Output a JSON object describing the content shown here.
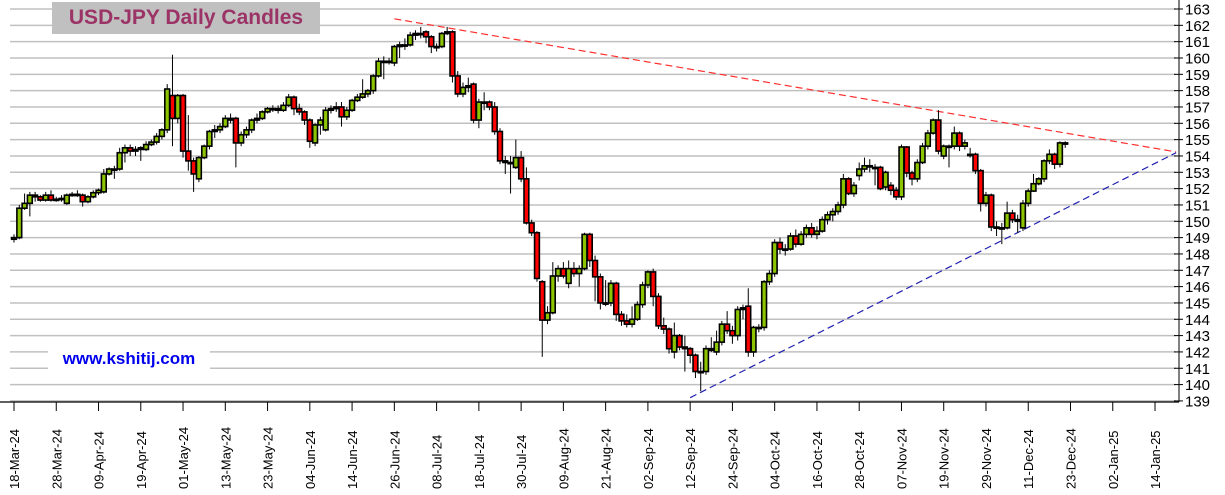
{
  "chart_data": {
    "type": "candlestick",
    "title": "USD-JPY Daily Candles",
    "watermark": "www.kshitij.com",
    "ylim": [
      139,
      163
    ],
    "y_ticks": [
      139,
      140,
      141,
      142,
      143,
      144,
      145,
      146,
      147,
      148,
      149,
      150,
      151,
      152,
      153,
      154,
      155,
      156,
      157,
      158,
      159,
      160,
      161,
      162,
      163
    ],
    "y_axis_side": "right",
    "x_tick_labels": [
      "18-Mar-24",
      "28-Mar-24",
      "09-Apr-24",
      "19-Apr-24",
      "01-May-24",
      "13-May-24",
      "23-May-24",
      "04-Jun-24",
      "14-Jun-24",
      "26-Jun-24",
      "08-Jul-24",
      "18-Jul-24",
      "30-Jul-24",
      "09-Aug-24",
      "21-Aug-24",
      "02-Sep-24",
      "12-Sep-24",
      "24-Sep-24",
      "04-Oct-24",
      "16-Oct-24",
      "28-Oct-24",
      "07-Nov-24",
      "19-Nov-24",
      "29-Nov-24",
      "11-Dec-24",
      "23-Dec-24",
      "02-Jan-25",
      "14-Jan-25"
    ],
    "grid": "horizontal",
    "colors": {
      "up": "#8cc400",
      "down": "#ff0000",
      "outline": "#000000",
      "grid": "#c0c0c0",
      "resistance": "#ff3030",
      "support": "#2020b0",
      "title_bg": "#c0c0c0",
      "title_text": "#9b3366",
      "watermark": "#0000ee"
    },
    "candle_fields": [
      "open",
      "high",
      "low",
      "close"
    ],
    "candles": [
      [
        148.9,
        149.2,
        148.7,
        149.0
      ],
      [
        149.0,
        151.0,
        148.9,
        150.8
      ],
      [
        150.8,
        151.7,
        150.7,
        151.1
      ],
      [
        151.1,
        151.8,
        150.3,
        151.6
      ],
      [
        151.6,
        151.8,
        151.2,
        151.5
      ],
      [
        151.5,
        151.6,
        151.2,
        151.3
      ],
      [
        151.3,
        151.8,
        151.2,
        151.6
      ],
      [
        151.6,
        151.9,
        151.2,
        151.3
      ],
      [
        151.3,
        151.5,
        151.2,
        151.35
      ],
      [
        151.35,
        151.6,
        151.2,
        151.4
      ],
      [
        151.1,
        151.7,
        151.0,
        151.6
      ],
      [
        151.6,
        151.8,
        151.5,
        151.65
      ],
      [
        151.65,
        151.9,
        151.5,
        151.6
      ],
      [
        151.6,
        151.7,
        150.9,
        151.2
      ],
      [
        151.2,
        151.6,
        151.1,
        151.5
      ],
      [
        151.5,
        151.9,
        151.4,
        151.75
      ],
      [
        151.75,
        152.0,
        151.6,
        151.9
      ],
      [
        151.8,
        153.2,
        151.7,
        152.9
      ],
      [
        152.9,
        153.3,
        152.8,
        153.2
      ],
      [
        153.2,
        153.4,
        152.6,
        153.2
      ],
      [
        153.2,
        154.5,
        153.1,
        154.2
      ],
      [
        154.2,
        154.7,
        153.6,
        154.5
      ],
      [
        154.5,
        154.7,
        154.0,
        154.3
      ],
      [
        154.3,
        154.6,
        154.0,
        154.4
      ],
      [
        154.4,
        154.6,
        153.7,
        154.5
      ],
      [
        154.4,
        154.9,
        154.3,
        154.7
      ],
      [
        154.7,
        155.0,
        154.6,
        154.85
      ],
      [
        154.85,
        155.4,
        154.7,
        155.2
      ],
      [
        155.2,
        155.7,
        155.0,
        155.6
      ],
      [
        155.6,
        158.4,
        155.4,
        158.1
      ],
      [
        157.7,
        160.2,
        154.6,
        156.3
      ],
      [
        156.3,
        157.8,
        156.0,
        157.7
      ],
      [
        157.7,
        157.8,
        153.9,
        154.3
      ],
      [
        154.3,
        156.5,
        153.1,
        153.7
      ],
      [
        153.7,
        153.9,
        151.8,
        152.9
      ],
      [
        152.6,
        154.0,
        152.4,
        153.9
      ],
      [
        153.9,
        154.7,
        153.8,
        154.6
      ],
      [
        154.6,
        155.6,
        154.4,
        155.5
      ],
      [
        155.5,
        155.9,
        155.1,
        155.6
      ],
      [
        155.6,
        156.0,
        155.4,
        155.8
      ],
      [
        155.8,
        156.5,
        155.7,
        156.3
      ],
      [
        156.2,
        156.6,
        156.0,
        156.3
      ],
      [
        156.3,
        156.4,
        153.3,
        154.8
      ],
      [
        154.8,
        155.5,
        154.6,
        155.3
      ],
      [
        155.3,
        155.8,
        155.1,
        155.6
      ],
      [
        155.6,
        156.3,
        155.4,
        156.2
      ],
      [
        156.2,
        156.6,
        156.0,
        156.3
      ],
      [
        156.3,
        156.8,
        156.2,
        156.7
      ],
      [
        156.7,
        157.0,
        156.6,
        156.9
      ],
      [
        156.9,
        157.1,
        156.7,
        156.9
      ],
      [
        156.9,
        157.1,
        156.6,
        156.8
      ],
      [
        156.8,
        157.3,
        156.7,
        157.1
      ],
      [
        157.1,
        157.8,
        157.0,
        157.6
      ],
      [
        157.6,
        157.7,
        156.5,
        156.9
      ],
      [
        156.9,
        157.2,
        156.5,
        156.7
      ],
      [
        156.7,
        156.8,
        155.9,
        156.2
      ],
      [
        156.2,
        156.3,
        154.5,
        154.9
      ],
      [
        154.8,
        156.0,
        154.6,
        155.9
      ],
      [
        155.9,
        156.4,
        155.3,
        156.2
      ],
      [
        155.6,
        157.0,
        155.5,
        156.8
      ],
      [
        156.8,
        157.1,
        156.6,
        156.9
      ],
      [
        156.9,
        157.3,
        156.7,
        157.0
      ],
      [
        157.0,
        157.3,
        155.8,
        156.4
      ],
      [
        156.4,
        157.0,
        156.2,
        156.8
      ],
      [
        156.8,
        157.5,
        156.7,
        157.4
      ],
      [
        157.4,
        157.8,
        157.3,
        157.6
      ],
      [
        157.6,
        158.7,
        157.5,
        157.8
      ],
      [
        157.8,
        158.1,
        157.6,
        158.0
      ],
      [
        158.0,
        159.0,
        157.8,
        158.9
      ],
      [
        158.9,
        160.0,
        158.8,
        159.8
      ],
      [
        159.8,
        160.1,
        158.7,
        159.8
      ],
      [
        159.8,
        160.0,
        159.6,
        159.8
      ],
      [
        159.7,
        160.8,
        159.5,
        160.7
      ],
      [
        160.7,
        161.0,
        160.0,
        160.8
      ],
      [
        160.8,
        161.2,
        160.5,
        160.8
      ],
      [
        160.8,
        161.6,
        160.7,
        161.4
      ],
      [
        161.4,
        161.7,
        161.1,
        161.5
      ],
      [
        161.5,
        161.9,
        161.2,
        161.5
      ],
      [
        161.6,
        161.7,
        160.9,
        161.3
      ],
      [
        161.3,
        161.4,
        160.3,
        160.7
      ],
      [
        160.7,
        160.9,
        160.4,
        160.7
      ],
      [
        160.7,
        161.6,
        160.6,
        161.5
      ],
      [
        161.5,
        161.9,
        161.4,
        161.6
      ],
      [
        161.6,
        161.7,
        158.5,
        158.9
      ],
      [
        158.9,
        159.2,
        157.6,
        157.8
      ],
      [
        157.8,
        158.5,
        157.6,
        158.2
      ],
      [
        158.2,
        158.8,
        157.9,
        158.3
      ],
      [
        158.4,
        158.5,
        156.0,
        156.2
      ],
      [
        156.2,
        157.5,
        155.7,
        157.3
      ],
      [
        157.3,
        157.9,
        156.8,
        157.3
      ],
      [
        157.3,
        157.4,
        156.8,
        157.0
      ],
      [
        157.0,
        157.3,
        155.3,
        155.5
      ],
      [
        155.5,
        155.7,
        153.5,
        153.7
      ],
      [
        153.7,
        154.0,
        152.9,
        153.6
      ],
      [
        153.6,
        154.0,
        151.7,
        153.6
      ],
      [
        153.3,
        155.0,
        153.2,
        153.9
      ],
      [
        153.9,
        154.3,
        152.4,
        152.6
      ],
      [
        152.6,
        153.3,
        149.8,
        149.9
      ],
      [
        149.9,
        150.1,
        149.1,
        149.3
      ],
      [
        149.3,
        149.4,
        146.3,
        146.5
      ],
      [
        146.3,
        146.4,
        141.7,
        143.95
      ],
      [
        143.95,
        144.8,
        143.7,
        144.4
      ],
      [
        144.4,
        147.5,
        144.3,
        146.65
      ],
      [
        146.65,
        147.3,
        146.3,
        147.1
      ],
      [
        147.1,
        147.5,
        146.5,
        146.65
      ],
      [
        146.2,
        147.6,
        145.9,
        147.1
      ],
      [
        147.1,
        147.5,
        146.6,
        146.8
      ],
      [
        146.8,
        147.3,
        146.0,
        147.1
      ],
      [
        147.1,
        149.3,
        147.0,
        149.2
      ],
      [
        149.2,
        149.3,
        147.2,
        147.6
      ],
      [
        147.6,
        147.9,
        145.1,
        146.6
      ],
      [
        146.6,
        146.8,
        144.6,
        145.0
      ],
      [
        145.0,
        146.4,
        144.8,
        145.0
      ],
      [
        145.0,
        146.4,
        144.8,
        146.2
      ],
      [
        146.2,
        146.3,
        143.9,
        144.3
      ],
      [
        144.3,
        144.5,
        143.6,
        143.9
      ],
      [
        143.9,
        144.3,
        143.5,
        143.7
      ],
      [
        143.7,
        144.8,
        143.5,
        144.0
      ],
      [
        144.0,
        145.1,
        143.9,
        144.9
      ],
      [
        144.9,
        146.3,
        144.7,
        146.1
      ],
      [
        146.1,
        147.0,
        145.9,
        146.9
      ],
      [
        146.9,
        147.1,
        144.8,
        145.4
      ],
      [
        145.4,
        145.6,
        143.4,
        143.6
      ],
      [
        143.6,
        144.1,
        143.1,
        143.4
      ],
      [
        143.4,
        143.5,
        141.9,
        142.2
      ],
      [
        142.0,
        143.8,
        141.6,
        143.0
      ],
      [
        143.0,
        143.1,
        142.1,
        142.3
      ],
      [
        142.3,
        143.0,
        140.8,
        142.2
      ],
      [
        142.2,
        142.3,
        141.3,
        141.8
      ],
      [
        141.8,
        141.9,
        140.4,
        140.8
      ],
      [
        140.8,
        141.4,
        139.6,
        140.8
      ],
      [
        140.8,
        142.4,
        140.6,
        142.2
      ],
      [
        142.2,
        142.9,
        142.0,
        142.1
      ],
      [
        142.0,
        143.3,
        141.8,
        142.6
      ],
      [
        142.6,
        143.9,
        142.4,
        143.7
      ],
      [
        143.7,
        144.5,
        143.1,
        143.3
      ],
      [
        143.3,
        143.6,
        142.5,
        143.0
      ],
      [
        143.0,
        144.8,
        142.7,
        144.6
      ],
      [
        144.6,
        144.9,
        144.0,
        144.7
      ],
      [
        144.8,
        145.9,
        141.7,
        142.0
      ],
      [
        142.0,
        143.6,
        141.7,
        143.5
      ],
      [
        143.5,
        143.7,
        143.2,
        143.5
      ],
      [
        143.5,
        146.4,
        143.3,
        146.3
      ],
      [
        146.3,
        147.0,
        146.1,
        146.8
      ],
      [
        146.8,
        148.9,
        146.6,
        148.7
      ],
      [
        148.7,
        149.0,
        148.0,
        148.3
      ],
      [
        148.3,
        148.6,
        147.9,
        148.3
      ],
      [
        148.3,
        149.3,
        148.2,
        149.1
      ],
      [
        149.1,
        149.5,
        148.4,
        148.6
      ],
      [
        148.6,
        149.4,
        148.5,
        149.2
      ],
      [
        149.2,
        149.8,
        149.0,
        149.6
      ],
      [
        149.6,
        149.9,
        149.0,
        149.2
      ],
      [
        149.2,
        149.7,
        148.9,
        149.4
      ],
      [
        149.4,
        150.3,
        149.3,
        150.1
      ],
      [
        150.1,
        150.6,
        149.8,
        150.4
      ],
      [
        150.4,
        150.8,
        150.0,
        150.6
      ],
      [
        150.6,
        151.2,
        150.4,
        151.0
      ],
      [
        151.0,
        152.9,
        150.8,
        152.6
      ],
      [
        152.6,
        152.7,
        151.6,
        151.7
      ],
      [
        151.7,
        152.4,
        151.5,
        152.2
      ],
      [
        152.8,
        153.6,
        152.5,
        153.2
      ],
      [
        153.2,
        153.9,
        153.0,
        153.4
      ],
      [
        153.4,
        153.8,
        153.0,
        153.4
      ],
      [
        153.3,
        153.5,
        152.2,
        153.3
      ],
      [
        153.3,
        153.4,
        151.9,
        152.0
      ],
      [
        152.1,
        153.1,
        151.9,
        153.0
      ],
      [
        152.2,
        152.4,
        151.6,
        151.9
      ],
      [
        151.9,
        152.1,
        151.3,
        151.5
      ],
      [
        151.5,
        154.7,
        151.3,
        154.55
      ],
      [
        154.55,
        154.6,
        152.7,
        152.96
      ],
      [
        152.96,
        153.1,
        152.2,
        152.6
      ],
      [
        152.6,
        153.8,
        152.4,
        153.6
      ],
      [
        153.6,
        154.8,
        153.5,
        154.6
      ],
      [
        154.6,
        155.6,
        154.4,
        155.4
      ],
      [
        155.4,
        156.3,
        155.3,
        156.2
      ],
      [
        156.2,
        156.8,
        154.1,
        154.3
      ],
      [
        154.0,
        154.7,
        153.8,
        154.6
      ],
      [
        154.6,
        154.7,
        153.3,
        154.6
      ],
      [
        154.6,
        155.8,
        154.4,
        155.4
      ],
      [
        155.4,
        155.5,
        154.3,
        154.6
      ],
      [
        154.6,
        155.0,
        154.4,
        154.8
      ],
      [
        154.1,
        154.5,
        153.9,
        154.1
      ],
      [
        154.1,
        154.2,
        152.9,
        153.1
      ],
      [
        153.1,
        153.2,
        150.6,
        151.1
      ],
      [
        151.1,
        151.8,
        150.9,
        151.6
      ],
      [
        151.6,
        151.7,
        149.4,
        149.65
      ],
      [
        149.65,
        150.0,
        149.1,
        149.6
      ],
      [
        149.6,
        149.9,
        148.6,
        149.6
      ],
      [
        149.6,
        151.2,
        149.5,
        150.5
      ],
      [
        150.5,
        150.7,
        149.9,
        150.1
      ],
      [
        150.1,
        150.4,
        149.3,
        150.0
      ],
      [
        149.6,
        151.3,
        149.4,
        151.1
      ],
      [
        151.1,
        152.0,
        150.9,
        151.85
      ],
      [
        151.85,
        152.9,
        151.8,
        152.3
      ],
      [
        152.3,
        152.7,
        152.2,
        152.6
      ],
      [
        152.6,
        153.8,
        152.4,
        153.7
      ],
      [
        153.7,
        154.4,
        153.5,
        154.1
      ],
      [
        154.1,
        154.2,
        153.2,
        153.5
      ],
      [
        153.5,
        154.9,
        153.3,
        154.8
      ],
      [
        154.8,
        154.9,
        154.5,
        154.8
      ]
    ],
    "trendlines": [
      {
        "kind": "resistance",
        "style": "dashed",
        "color": "#ff3030",
        "from": {
          "date": "26-Jun-24",
          "price": 162.4
        },
        "to": {
          "date": "20-Jan-25",
          "price": 154.25
        }
      },
      {
        "kind": "support",
        "style": "dashed",
        "color": "#2020b0",
        "from": {
          "date": "12-Sep-24",
          "price": 139.2
        },
        "to": {
          "date": "20-Jan-25",
          "price": 154.2
        }
      }
    ]
  }
}
